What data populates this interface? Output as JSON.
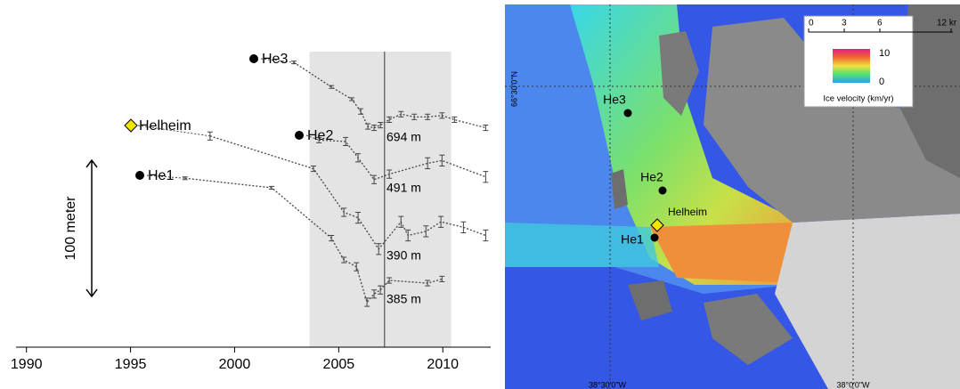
{
  "chart_data": {
    "type": "line",
    "x_tick_years": null,
    "xlim": [
      1989.5,
      2012.3
    ],
    "xticks": [
      1990,
      1995,
      2000,
      2005,
      2010
    ],
    "ylim": [
      0,
      230
    ],
    "shaded_span": [
      2003.6,
      2010.4
    ],
    "vline": 2007.2,
    "scale_bar": {
      "label": "100 meter",
      "value": 100
    },
    "series": [
      {
        "name": "He3",
        "marker": "circle",
        "color": "#000000",
        "elevation_label": "694 m",
        "x": [
          2002.85,
          2004.65,
          2005.63,
          2006.06,
          2006.4,
          2006.7,
          2007.0,
          2007.43,
          2007.99,
          2008.63,
          2009.27,
          2009.96,
          2010.56,
          2012.06
        ],
        "values": [
          209,
          191,
          182,
          173,
          162,
          161,
          163,
          167,
          171,
          169,
          169,
          170,
          167,
          161
        ],
        "errors": [
          1,
          1,
          1,
          2,
          2,
          2,
          2,
          2,
          2,
          2,
          2,
          2,
          2,
          2
        ]
      },
      {
        "name": "He2",
        "marker": "circle",
        "color": "#000000",
        "elevation_label": "491 m",
        "x": [
          2004.05,
          2005.33,
          2005.93,
          2006.7,
          2007.43,
          2009.27,
          2009.96,
          2012.06
        ],
        "values": [
          152,
          151,
          139,
          123,
          127,
          135,
          137,
          125
        ],
        "errors": [
          2,
          3,
          3,
          3,
          3,
          4,
          4,
          4
        ]
      },
      {
        "name": "Helheim",
        "marker": "diamond",
        "color": "#f2e600",
        "elevation_label": "390 m",
        "x": [
          1998.82,
          2003.79,
          2005.25,
          2005.93,
          2006.92,
          2007.99,
          2008.33,
          2009.19,
          2009.91,
          2010.99,
          2012.06
        ],
        "values": [
          155,
          131,
          99,
          95,
          72,
          92,
          82,
          85,
          92,
          88,
          82
        ],
        "errors": [
          3,
          2,
          3,
          4,
          4,
          4,
          4,
          4,
          4,
          4,
          4
        ]
      },
      {
        "name": "He1",
        "marker": "circle",
        "color": "#000000",
        "elevation_label": "385 m",
        "x": [
          1997.62,
          2001.78,
          2004.65,
          2005.25,
          2005.85,
          2006.36,
          2006.7,
          2007.0,
          2007.43,
          2009.27,
          2009.96
        ],
        "values": [
          124,
          117,
          80,
          64,
          59,
          33,
          39,
          42,
          49,
          47,
          50
        ],
        "errors": [
          1,
          1,
          2,
          2,
          3,
          3,
          3,
          3,
          2,
          2,
          2
        ]
      }
    ]
  },
  "map": {
    "stations": [
      "He3",
      "He2",
      "Helheim",
      "He1"
    ],
    "scale_labels": [
      "0",
      "3",
      "6",
      "12 kr"
    ],
    "legend": {
      "max": "10",
      "min": "0",
      "title": "Ice velocity (km/yr)"
    },
    "lat_label": "66°30'0\"N",
    "lon_labels": [
      "38°30'0\"W",
      "38°0'0\"W"
    ]
  }
}
